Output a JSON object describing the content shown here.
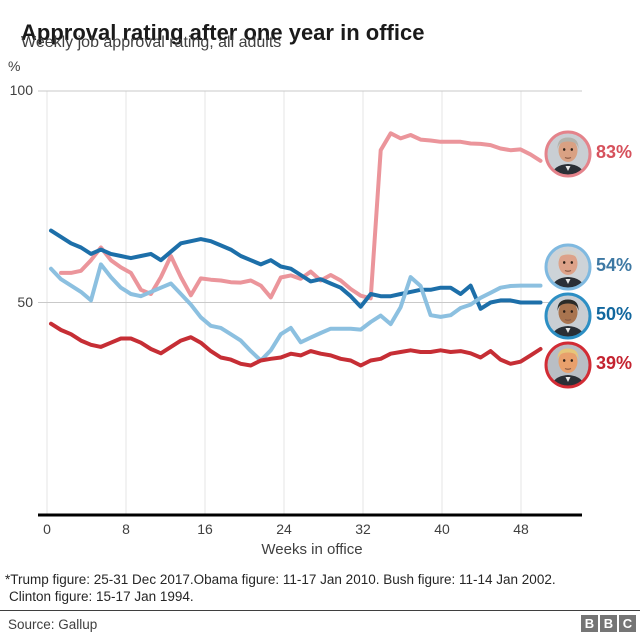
{
  "header": {
    "title": "Approval rating after one year in office",
    "subtitle": "Weekly job approval rating, all adults"
  },
  "chart_data": {
    "type": "line",
    "title": "Approval rating after one year in office",
    "subtitle": "Weekly job approval rating, all adults",
    "unit_label": "%",
    "xlabel": "Weeks in office",
    "x_axis": {
      "ticks": [
        0,
        8,
        16,
        24,
        32,
        40,
        48
      ],
      "range": [
        0,
        50
      ]
    },
    "y_axis": {
      "gridline_values": [
        100,
        50
      ],
      "tick_labels": [
        "100",
        "50"
      ],
      "range": [
        0,
        100
      ]
    },
    "grid": "on",
    "series": [
      {
        "name": "Bush",
        "color": "#eb959b",
        "values": [
          null,
          57,
          57,
          57.5,
          60,
          63,
          60,
          58.3,
          57,
          53,
          52,
          56,
          61,
          56,
          51.7,
          55.7,
          55.4,
          55.2,
          54.8,
          54.7,
          55.2,
          54,
          51.2,
          55.9,
          56.4,
          55.6,
          57.3,
          55.2,
          56.5,
          55.2,
          53.2,
          51.6,
          51,
          86,
          90,
          88.8,
          89.6,
          88.5,
          88.3,
          88,
          88,
          88,
          87.6,
          87.5,
          87.2,
          86.4,
          86,
          86.2,
          85,
          83.5
        ]
      },
      {
        "name": "Obama",
        "color": "#1d6fa9",
        "values": [
          67,
          65.5,
          64,
          63,
          61.5,
          62.5,
          61.5,
          61,
          60.5,
          61,
          61.5,
          60,
          62,
          64,
          64.5,
          65,
          64.5,
          63.5,
          62.5,
          61,
          60,
          59,
          60,
          58.5,
          58,
          56.5,
          55,
          55.5,
          54.5,
          53.5,
          51.5,
          49,
          52,
          51.5,
          51.5,
          52,
          52.5,
          53,
          53,
          53.5,
          53.5,
          52,
          54,
          48.5,
          50,
          50.5,
          50.5,
          50,
          50,
          50
        ]
      },
      {
        "name": "Clinton",
        "color": "#8cc0e0",
        "values": [
          58,
          55.5,
          54,
          52.5,
          50.5,
          59,
          56,
          53.5,
          52,
          51.5,
          52.5,
          53.5,
          54.5,
          52,
          49.5,
          46.5,
          44.5,
          44,
          42.5,
          41,
          38.5,
          36.3,
          38.7,
          42.5,
          44,
          40.6,
          41.7,
          42.8,
          43.8,
          43.8,
          43.8,
          43.6,
          45.4,
          46.9,
          44.9,
          48.9,
          56,
          53.9,
          47,
          46.6,
          47,
          48.7,
          49.5,
          51.1,
          52.3,
          53.5,
          53.9,
          54,
          54,
          54
        ]
      },
      {
        "name": "Trump",
        "color": "#c62e35",
        "values": [
          45,
          43.5,
          42.5,
          41,
          40,
          39.5,
          40.5,
          41.5,
          41.5,
          40.5,
          39,
          38,
          39.5,
          41,
          41.8,
          40.5,
          38.5,
          37,
          36.5,
          35.5,
          35.1,
          36.3,
          36.7,
          37,
          37.9,
          37.5,
          38.5,
          37.9,
          37.5,
          36.7,
          36.3,
          35.1,
          36.3,
          36.7,
          37.9,
          38.3,
          38.7,
          38.3,
          38.3,
          38.7,
          38.3,
          38.5,
          38,
          37,
          38.5,
          36.5,
          35.5,
          36,
          37.5,
          39
        ]
      }
    ]
  },
  "presidents": [
    {
      "name": "George W Bush",
      "label": "83%",
      "value": 83,
      "ring": "#e4838b",
      "label_color": "#d6515c",
      "hair": "#b3b3ac",
      "skin": "#d9a183",
      "bg": "#c9ced3"
    },
    {
      "name": "Bill Clinton",
      "label": "54%",
      "value": 54,
      "ring": "#7fb9e0",
      "label_color": "#3d78a3",
      "hair": "#d3d3cc",
      "skin": "#dda289",
      "bg": "#cdd3d8"
    },
    {
      "name": "Barack Obama",
      "label": "50%",
      "value": 50,
      "ring": "#2d8fc4",
      "label_color": "#11679e",
      "hair": "#2b2b28",
      "skin": "#a9744f",
      "bg": "#c9ced3"
    },
    {
      "name": "Donald Trump",
      "label": "39%",
      "value": 39,
      "ring": "#d22c35",
      "label_color": "#c42330",
      "hair": "#e6c67a",
      "skin": "#e8a06c",
      "bg": "#b9bec4"
    }
  ],
  "footnote_lines": [
    "*Trump figure: 25-31 Dec 2017.Obama figure: 11-17 Jan 2010. Bush figure: 11-14 Jan 2002.",
    "Clinton figure: 15-17 Jan 1994."
  ],
  "source": "Source: Gallup",
  "logo_letters": [
    "B",
    "B",
    "C"
  ]
}
